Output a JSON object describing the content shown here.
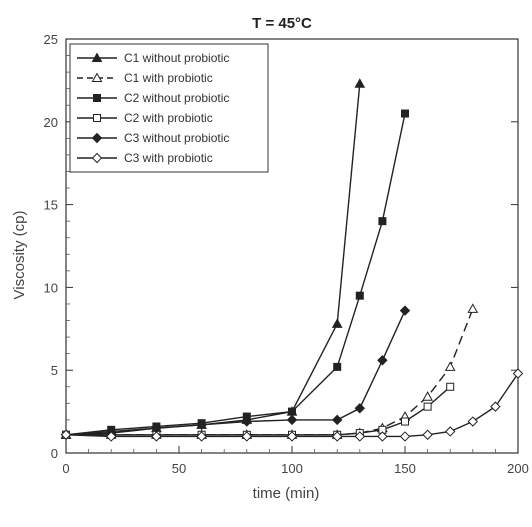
{
  "chart_data": {
    "type": "line",
    "title": "T = 45°C",
    "xlabel": "time (min)",
    "ylabel": "Viscosity (cp)",
    "xlim": [
      0,
      200
    ],
    "ylim": [
      0,
      25
    ],
    "x_ticks": [
      0,
      50,
      100,
      150,
      200
    ],
    "y_ticks": [
      0,
      5,
      10,
      15,
      20,
      25
    ],
    "grid": false,
    "legend_position": "top-left",
    "series": [
      {
        "name": "C1 without probiotic",
        "marker": "triangle",
        "filled": true,
        "dashed": false,
        "x": [
          0,
          20,
          40,
          60,
          80,
          100,
          120,
          130
        ],
        "y": [
          1.1,
          1.3,
          1.5,
          1.7,
          2.0,
          2.5,
          7.8,
          22.3
        ]
      },
      {
        "name": "C1 with probiotic",
        "marker": "triangle",
        "filled": false,
        "dashed": true,
        "x": [
          0,
          20,
          40,
          60,
          80,
          100,
          120,
          130,
          140,
          150,
          160,
          170,
          180
        ],
        "y": [
          1.1,
          1.1,
          1.1,
          1.1,
          1.1,
          1.1,
          1.1,
          1.2,
          1.5,
          2.2,
          3.4,
          5.2,
          8.7
        ]
      },
      {
        "name": "C2 without probiotic",
        "marker": "square",
        "filled": true,
        "dashed": false,
        "x": [
          0,
          20,
          40,
          60,
          80,
          100,
          120,
          130,
          140,
          150
        ],
        "y": [
          1.1,
          1.4,
          1.6,
          1.8,
          2.2,
          2.5,
          5.2,
          9.5,
          14.0,
          20.5
        ]
      },
      {
        "name": "C2 with probiotic",
        "marker": "square",
        "filled": false,
        "dashed": false,
        "x": [
          0,
          20,
          40,
          60,
          80,
          100,
          120,
          130,
          140,
          150,
          160,
          170
        ],
        "y": [
          1.1,
          1.1,
          1.1,
          1.1,
          1.1,
          1.1,
          1.1,
          1.2,
          1.4,
          1.9,
          2.8,
          4.0
        ]
      },
      {
        "name": "C3 without probiotic",
        "marker": "diamond",
        "filled": true,
        "dashed": false,
        "x": [
          0,
          20,
          40,
          60,
          80,
          100,
          120,
          130,
          140,
          150
        ],
        "y": [
          1.1,
          1.2,
          1.5,
          1.7,
          1.9,
          2.0,
          2.0,
          2.7,
          5.6,
          8.6
        ]
      },
      {
        "name": "C3 with probiotic",
        "marker": "diamond",
        "filled": false,
        "dashed": false,
        "x": [
          0,
          20,
          40,
          60,
          80,
          100,
          120,
          130,
          140,
          150,
          160,
          170,
          180,
          190,
          200
        ],
        "y": [
          1.1,
          1.0,
          1.0,
          1.0,
          1.0,
          1.0,
          1.0,
          1.0,
          1.0,
          1.0,
          1.1,
          1.3,
          1.9,
          2.8,
          4.8
        ]
      }
    ]
  }
}
